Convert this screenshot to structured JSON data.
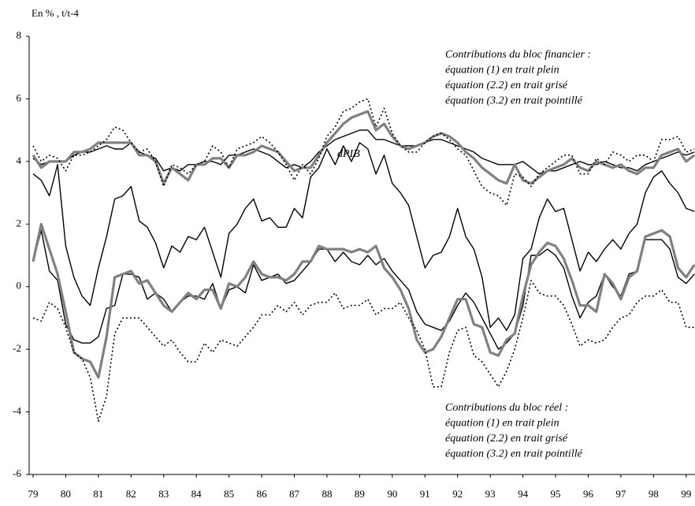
{
  "chart_data": {
    "type": "line",
    "y_label": "En % , t/t-4",
    "annotations": {
      "financial": [
        "Contributions du bloc financier :",
        "équation (1) en trait plein",
        "équation (2.2) en trait grisé",
        "équation (3.2) en trait pointillé"
      ],
      "real": [
        "Contributions du bloc réel :",
        "équation (1) en trait plein",
        "équation (2.2) en trait grisé",
        "équation (3.2) en trait pointillé"
      ]
    },
    "x": [
      79,
      79.25,
      79.5,
      79.75,
      80,
      80.25,
      80.5,
      80.75,
      81,
      81.25,
      81.5,
      81.75,
      82,
      82.25,
      82.5,
      82.75,
      83,
      83.25,
      83.5,
      83.75,
      84,
      84.25,
      84.5,
      84.75,
      85,
      85.25,
      85.5,
      85.75,
      86,
      86.25,
      86.5,
      86.75,
      87,
      87.25,
      87.5,
      87.75,
      88,
      88.25,
      88.5,
      88.75,
      89,
      89.25,
      89.5,
      89.75,
      90,
      90.25,
      90.5,
      90.75,
      91,
      91.25,
      91.5,
      91.75,
      92,
      92.25,
      92.5,
      92.75,
      93,
      93.25,
      93.5,
      93.75,
      94,
      94.25,
      94.5,
      94.75,
      95,
      95.25,
      95.5,
      95.75,
      96,
      96.25,
      96.5,
      96.75,
      97,
      97.25,
      97.5,
      97.75,
      98,
      98.25,
      98.5,
      98.75,
      99,
      99.25
    ],
    "xlim": [
      78.88,
      99.27
    ],
    "xticks": [
      79,
      80,
      81,
      82,
      83,
      84,
      85,
      86,
      87,
      88,
      89,
      90,
      91,
      92,
      93,
      94,
      95,
      96,
      97,
      98,
      99
    ],
    "ylim": [
      -6,
      8
    ],
    "yticks": [
      -6,
      -4,
      -2,
      0,
      2,
      4,
      6,
      8
    ],
    "series": [
      {
        "name": "dPIB",
        "color": "#000000",
        "style": "solid",
        "values": [
          3.6,
          3.4,
          2.9,
          3.9,
          1.3,
          0.3,
          -0.3,
          -0.6,
          0.6,
          1.6,
          2.8,
          2.9,
          3.2,
          2.1,
          1.9,
          1.4,
          0.6,
          1.3,
          1.1,
          1.6,
          1.5,
          1.9,
          1.1,
          0.3,
          1.7,
          2.0,
          2.5,
          2.8,
          2.1,
          2.2,
          1.9,
          1.9,
          2.5,
          2.2,
          3.5,
          3.8,
          4.4,
          3.9,
          4.5,
          4.0,
          4.6,
          4.4,
          3.6,
          4.2,
          3.3,
          3.0,
          2.6,
          1.6,
          0.6,
          1.0,
          1.1,
          1.6,
          2.5,
          1.6,
          1.2,
          0.3,
          -1.3,
          -1.0,
          -1.4,
          -0.9,
          0.9,
          1.2,
          2.2,
          2.8,
          2.4,
          2.5,
          1.5,
          0.5,
          1.1,
          0.8,
          1.2,
          1.5,
          1.2,
          1.7,
          2.0,
          3.0,
          3.5,
          3.7,
          3.3,
          3.0,
          2.5,
          2.4
        ]
      },
      {
        "color": "#000000",
        "style": "solid",
        "values": [
          4.1,
          3.9,
          4.0,
          4.0,
          4.0,
          4.2,
          4.3,
          4.3,
          4.4,
          4.5,
          4.4,
          4.4,
          4.6,
          4.3,
          4.2,
          4.1,
          3.7,
          3.8,
          3.7,
          3.9,
          3.9,
          4.0,
          4.0,
          3.9,
          4.2,
          4.2,
          4.3,
          4.4,
          4.3,
          4.2,
          4.0,
          3.8,
          3.9,
          3.8,
          4.0,
          4.3,
          4.5,
          4.7,
          4.8,
          4.9,
          5.0,
          5.0,
          4.7,
          4.7,
          4.6,
          4.5,
          4.5,
          4.5,
          4.6,
          4.7,
          4.7,
          4.6,
          4.5,
          4.4,
          4.3,
          4.1,
          4.0,
          3.9,
          3.9,
          3.9,
          4.0,
          3.8,
          3.6,
          3.7,
          3.7,
          3.8,
          3.9,
          4.0,
          3.9,
          3.9,
          4.0,
          3.9,
          3.8,
          3.8,
          3.7,
          3.9,
          4.0,
          4.1,
          4.2,
          4.3,
          4.2,
          4.3
        ]
      },
      {
        "color": "#808080",
        "style": "thick",
        "values": [
          4.2,
          3.8,
          4.0,
          4.0,
          4.0,
          4.3,
          4.3,
          4.4,
          4.6,
          4.6,
          4.6,
          4.6,
          4.6,
          4.2,
          4.2,
          4.0,
          3.3,
          3.8,
          3.6,
          3.4,
          3.9,
          3.9,
          4.1,
          4.1,
          3.8,
          4.2,
          4.2,
          4.3,
          4.5,
          4.4,
          4.3,
          4.0,
          3.7,
          3.8,
          3.8,
          4.2,
          4.6,
          4.9,
          5.2,
          5.4,
          5.5,
          5.6,
          5.0,
          5.2,
          4.8,
          4.5,
          4.4,
          4.5,
          4.6,
          4.8,
          4.9,
          4.8,
          4.6,
          4.3,
          4.1,
          3.8,
          3.6,
          3.4,
          3.3,
          3.9,
          3.4,
          3.3,
          3.5,
          3.7,
          3.8,
          3.9,
          4.1,
          3.8,
          3.7,
          4.0,
          3.9,
          3.8,
          3.9,
          3.7,
          3.6,
          3.8,
          3.8,
          4.2,
          4.3,
          4.4,
          4.0,
          4.2
        ]
      },
      {
        "color": "#000000",
        "style": "dotted",
        "values": [
          4.5,
          4.0,
          4.2,
          4.1,
          3.7,
          4.2,
          4.2,
          4.3,
          4.5,
          4.7,
          5.1,
          5.0,
          4.6,
          4.3,
          4.4,
          4.0,
          3.2,
          3.9,
          3.8,
          3.6,
          3.9,
          4.0,
          4.5,
          4.3,
          3.8,
          4.4,
          4.5,
          4.6,
          4.8,
          4.6,
          4.3,
          3.9,
          3.4,
          3.9,
          3.6,
          4.1,
          4.8,
          5.1,
          5.6,
          5.7,
          5.9,
          6.0,
          5.1,
          5.7,
          4.9,
          4.5,
          4.3,
          4.3,
          4.6,
          4.8,
          4.9,
          4.7,
          4.4,
          4.2,
          3.7,
          3.2,
          3.0,
          2.9,
          2.6,
          3.6,
          3.5,
          3.2,
          3.6,
          3.8,
          4.0,
          4.2,
          4.2,
          3.6,
          3.6,
          4.1,
          3.9,
          4.3,
          4.2,
          4.0,
          4.2,
          4.2,
          4.0,
          4.7,
          4.7,
          4.8,
          4.3,
          4.4
        ]
      },
      {
        "color": "#000000",
        "style": "solid",
        "values": [
          0.8,
          1.8,
          0.5,
          0.2,
          -1.2,
          -1.7,
          -1.8,
          -1.8,
          -1.6,
          -0.7,
          -0.6,
          0.4,
          0.4,
          0.3,
          -0.4,
          -0.2,
          -0.4,
          -0.8,
          -0.5,
          -0.3,
          -0.3,
          -0.4,
          0.1,
          -0.7,
          -0.1,
          0.0,
          -0.2,
          0.7,
          0.2,
          0.3,
          0.4,
          0.1,
          0.2,
          0.5,
          0.8,
          1.2,
          1.2,
          0.8,
          1.1,
          0.8,
          0.7,
          1.0,
          0.7,
          0.9,
          0.5,
          0.2,
          -0.1,
          -0.8,
          -1.2,
          -1.3,
          -1.4,
          -1.1,
          -0.6,
          -0.2,
          -0.5,
          -1.0,
          -1.5,
          -2.0,
          -1.8,
          -1.5,
          -0.6,
          1.0,
          1.0,
          1.2,
          1.0,
          0.6,
          -0.3,
          -1.0,
          -0.5,
          -0.3,
          0.4,
          0.0,
          -0.3,
          0.4,
          0.5,
          1.5,
          1.5,
          1.5,
          1.2,
          0.3,
          0.1,
          0.4
        ]
      },
      {
        "color": "#808080",
        "style": "thick",
        "values": [
          0.8,
          2.0,
          1.2,
          0.4,
          -0.8,
          -2.1,
          -2.3,
          -2.4,
          -2.9,
          -1.6,
          0.3,
          0.4,
          0.5,
          0.1,
          0.2,
          -0.2,
          -0.6,
          -0.8,
          -0.5,
          -0.2,
          -0.4,
          -0.1,
          -0.1,
          -0.7,
          0.1,
          0.0,
          0.3,
          0.8,
          0.4,
          0.3,
          0.3,
          0.2,
          0.4,
          0.8,
          0.8,
          1.3,
          1.2,
          1.2,
          1.2,
          1.1,
          1.2,
          1.1,
          1.3,
          0.6,
          0.3,
          -0.1,
          -0.7,
          -1.7,
          -2.1,
          -2.0,
          -1.6,
          -1.0,
          -0.4,
          -0.4,
          -1.2,
          -1.3,
          -2.1,
          -2.2,
          -1.7,
          -1.5,
          -0.3,
          0.7,
          1.1,
          1.4,
          1.3,
          0.9,
          0.2,
          -0.6,
          -0.6,
          -0.8,
          0.4,
          0.1,
          -0.4,
          0.3,
          0.5,
          1.6,
          1.7,
          1.8,
          1.6,
          0.6,
          0.3,
          0.7
        ]
      },
      {
        "color": "#000000",
        "style": "dotted",
        "values": [
          -1.0,
          -1.1,
          -0.5,
          -0.7,
          -1.3,
          -2.1,
          -2.3,
          -2.9,
          -4.3,
          -3.5,
          -1.5,
          -1.0,
          -1.0,
          -1.0,
          -1.3,
          -1.6,
          -1.9,
          -1.7,
          -2.1,
          -2.4,
          -2.4,
          -1.8,
          -2.1,
          -1.7,
          -1.8,
          -1.9,
          -1.6,
          -1.3,
          -0.9,
          -0.9,
          -0.6,
          -0.8,
          -0.5,
          -0.9,
          -0.6,
          -0.5,
          -0.5,
          -0.2,
          -0.7,
          -0.6,
          -0.6,
          -0.4,
          -0.9,
          -0.7,
          -0.7,
          -0.5,
          -1.0,
          -1.4,
          -2.0,
          -3.2,
          -3.2,
          -2.1,
          -1.4,
          -1.3,
          -2.2,
          -2.4,
          -2.8,
          -3.2,
          -2.7,
          -2.0,
          -1.0,
          0.2,
          -0.2,
          -0.3,
          -0.3,
          -0.6,
          -1.2,
          -1.9,
          -1.7,
          -1.8,
          -1.7,
          -1.3,
          -1.0,
          -0.9,
          -0.5,
          -0.3,
          -0.3,
          -0.1,
          -0.5,
          -0.5,
          -1.3,
          -1.3
        ]
      }
    ]
  }
}
